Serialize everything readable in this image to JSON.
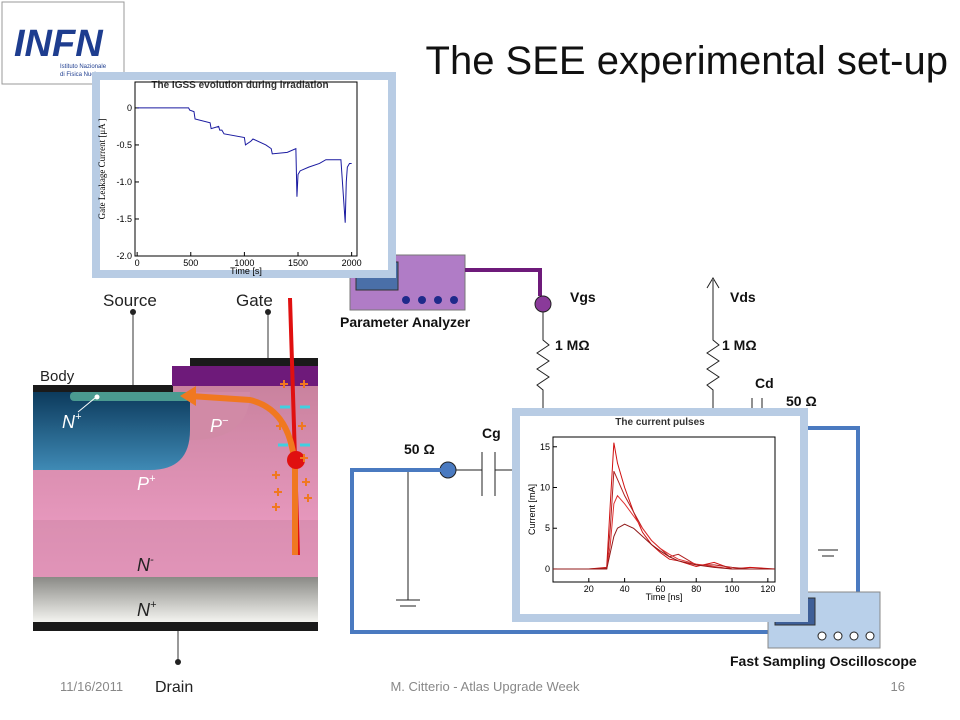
{
  "title": "The SEE experimental set-up",
  "logo": {
    "name": "INFN",
    "line1": "Istituto Nazionale",
    "line2": "di Fisica Nucleare"
  },
  "device": {
    "source": "Source",
    "gate": "Gate",
    "body": "Body",
    "drain": "Drain",
    "n_plus_top": {
      "base": "N",
      "sup": "+"
    },
    "p_minus": {
      "base": "P",
      "sup": "−"
    },
    "p_plus": {
      "base": "P",
      "sup": "+"
    },
    "n_minus": {
      "base": "N",
      "sup": "-"
    },
    "n_plus_bottom": {
      "base": "N",
      "sup": "+"
    }
  },
  "circuit": {
    "analyzer": "Parameter Analyzer",
    "vgs": "Vgs",
    "vds": "Vds",
    "r_gate": "1 MΩ",
    "r_drain": "1 MΩ",
    "cd": "Cd",
    "r50_drain": "50 Ω",
    "r50_gate": "50 Ω",
    "cg": "Cg",
    "scope": "Fast Sampling Oscilloscope"
  },
  "footer": {
    "date": "11/16/2011",
    "center": "M. Citterio - Atlas Upgrade Week",
    "page": "16"
  },
  "chart_data": [
    {
      "type": "line",
      "title": "The IGSS evolution during irradiation",
      "x_label": "Time [s]",
      "y_label": "Gate Leakage Current [μA ]",
      "x": [
        0,
        480,
        490,
        530,
        540,
        680,
        690,
        760,
        770,
        790,
        810,
        1000,
        1010,
        1060,
        1080,
        1200,
        1250,
        1260,
        1400,
        1480,
        1490,
        1500,
        1520,
        1600,
        1700,
        1760,
        1900,
        1940,
        1950,
        1960,
        1980,
        2000
      ],
      "series": [
        {
          "color": "#1a1aa0",
          "values": [
            0,
            0,
            -0.03,
            -0.05,
            -0.15,
            -0.2,
            -0.28,
            -0.25,
            -0.3,
            -0.3,
            -0.35,
            -0.4,
            -0.5,
            -0.45,
            -0.42,
            -0.5,
            -0.55,
            -0.62,
            -0.6,
            -0.55,
            -1.2,
            -0.9,
            -0.85,
            -0.8,
            -0.75,
            -0.7,
            -0.7,
            -1.55,
            -1.0,
            -0.8,
            -0.75,
            -0.75
          ]
        }
      ],
      "xlim": [
        -20,
        2050
      ],
      "ylim": [
        -2,
        0.35
      ],
      "xticks": [
        0,
        500,
        1000,
        1500,
        2000
      ],
      "yticks": [
        {
          "value": -2,
          "label": "-2.0"
        },
        -1.5,
        {
          "value": -1,
          "label": "-1.0"
        },
        -0.5,
        0
      ]
    },
    {
      "type": "line",
      "title": "The current pulses",
      "x_label": "Time [ns]",
      "y_label": "Current [mA]",
      "x": [
        0,
        10,
        20,
        30,
        32,
        34,
        36,
        40,
        45,
        50,
        55,
        60,
        65,
        70,
        80,
        90,
        100,
        110,
        124
      ],
      "series": [
        {
          "color": "#d01010",
          "values": [
            0,
            0,
            0,
            0.2,
            8,
            15.5,
            13,
            10,
            7,
            4.5,
            3,
            2,
            1.2,
            1,
            0.3,
            0.8,
            0,
            0.2,
            0
          ]
        },
        {
          "color": "#b02020",
          "values": [
            0,
            0,
            0,
            0.1,
            5,
            12,
            11,
            9,
            7,
            5,
            3.5,
            2.5,
            1.5,
            1.8,
            0.5,
            0.5,
            0.2,
            0,
            0
          ]
        },
        {
          "color": "#e03030",
          "values": [
            0,
            0,
            0,
            0,
            3,
            8,
            9,
            8,
            6.5,
            5,
            3.5,
            2.5,
            1.8,
            1.2,
            0.6,
            0.3,
            0,
            0,
            0
          ]
        },
        {
          "color": "#901818",
          "values": [
            0,
            0,
            0,
            0,
            2,
            4,
            5,
            5.5,
            5,
            4,
            3,
            2.2,
            1.5,
            1,
            0.5,
            0.2,
            0,
            0,
            0
          ]
        }
      ],
      "xlim": [
        0,
        124
      ],
      "ylim": [
        -1.6,
        16.2
      ],
      "xticks": [
        20,
        40,
        60,
        80,
        100,
        120
      ],
      "yticks": [
        0,
        5,
        10,
        15
      ]
    }
  ]
}
